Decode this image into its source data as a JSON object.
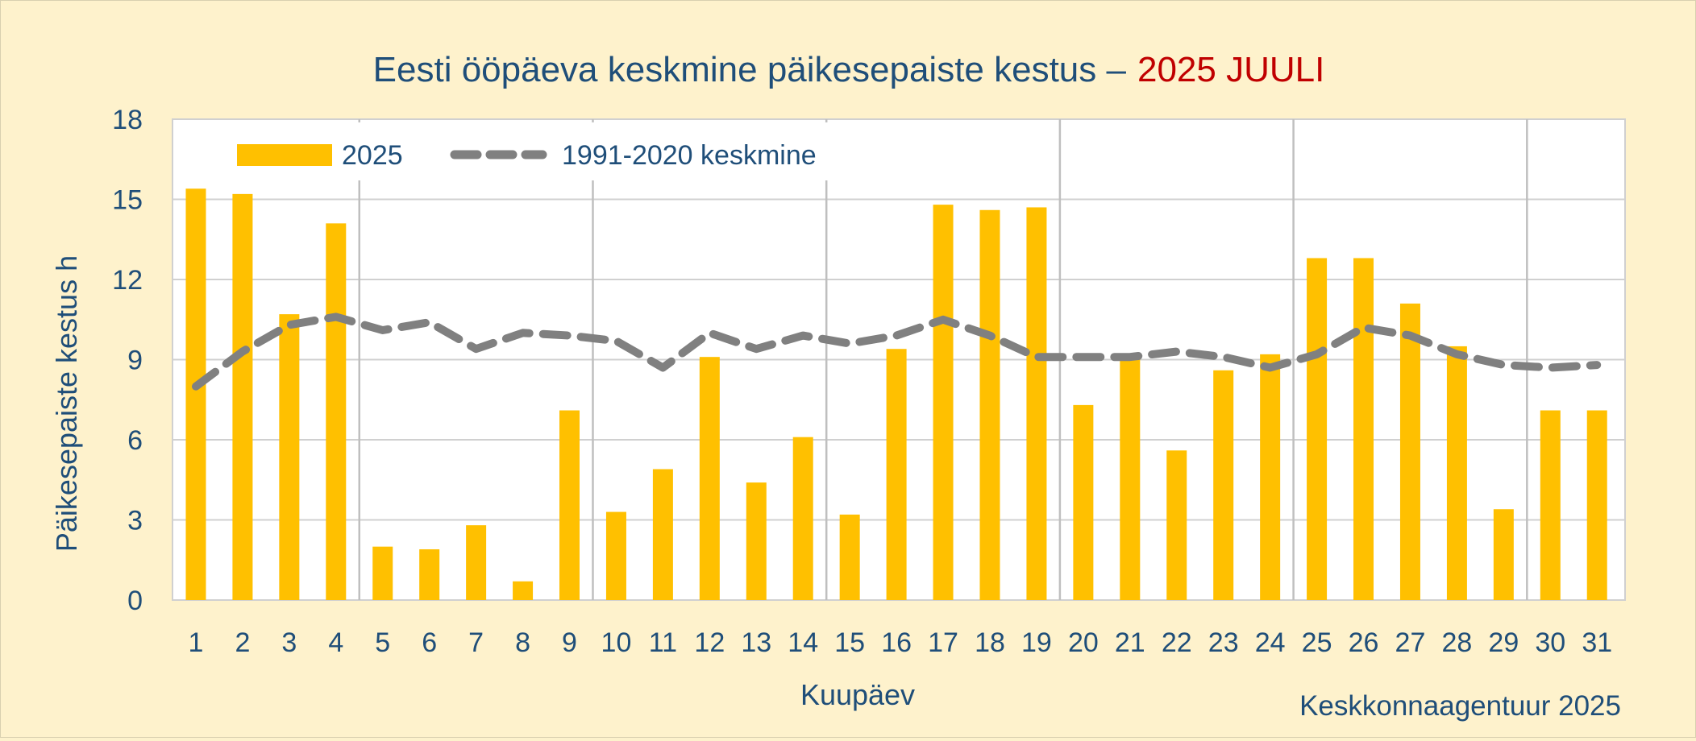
{
  "chart_data": {
    "type": "bar",
    "title": "Eesti ööpäeva keskmine päikesepaiste kestus –",
    "title_highlight": "2025 JUULI",
    "xlabel": "Kuupäev",
    "ylabel": "Päikesepaiste kestus h",
    "source": "Keskkonnaagentuur 2025",
    "ylim": [
      0,
      18
    ],
    "yticks": [
      "0",
      "3",
      "6",
      "9",
      "12",
      "15",
      "18"
    ],
    "grid": true,
    "legend_position": "top-left",
    "categories": [
      "1",
      "2",
      "3",
      "4",
      "5",
      "6",
      "7",
      "8",
      "9",
      "10",
      "11",
      "12",
      "13",
      "14",
      "15",
      "16",
      "17",
      "18",
      "19",
      "20",
      "21",
      "22",
      "23",
      "24",
      "25",
      "26",
      "27",
      "28",
      "29",
      "30",
      "31"
    ],
    "series": [
      {
        "name": "2025",
        "type": "bar",
        "color": "#ffc000",
        "values": [
          15.4,
          15.2,
          10.7,
          14.1,
          2.0,
          1.9,
          2.8,
          0.7,
          7.1,
          3.3,
          4.9,
          9.1,
          4.4,
          6.1,
          3.2,
          9.4,
          14.8,
          14.6,
          14.7,
          7.3,
          9.2,
          5.6,
          8.6,
          9.2,
          12.8,
          12.8,
          11.1,
          9.5,
          3.4,
          7.1,
          7.1
        ]
      },
      {
        "name": "1991-2020 keskmine",
        "type": "line",
        "style": "dashed",
        "color": "#808080",
        "values": [
          8.0,
          9.3,
          10.3,
          10.6,
          10.1,
          10.4,
          9.4,
          10.0,
          9.9,
          9.7,
          8.7,
          10.0,
          9.4,
          9.9,
          9.6,
          9.9,
          10.5,
          9.9,
          9.1,
          9.1,
          9.1,
          9.3,
          9.1,
          8.7,
          9.2,
          10.2,
          9.9,
          9.2,
          8.8,
          8.7,
          8.8
        ]
      }
    ],
    "week_separators_after": [
      4,
      9,
      14,
      19,
      24,
      29
    ],
    "colors": {
      "text": "#1f4e79",
      "highlight": "#c00000",
      "gridline": "#d0d0d0",
      "week_separator": "#bfbfbf",
      "plot_background": "#ffffff",
      "page_background": "#fef2cc"
    }
  }
}
